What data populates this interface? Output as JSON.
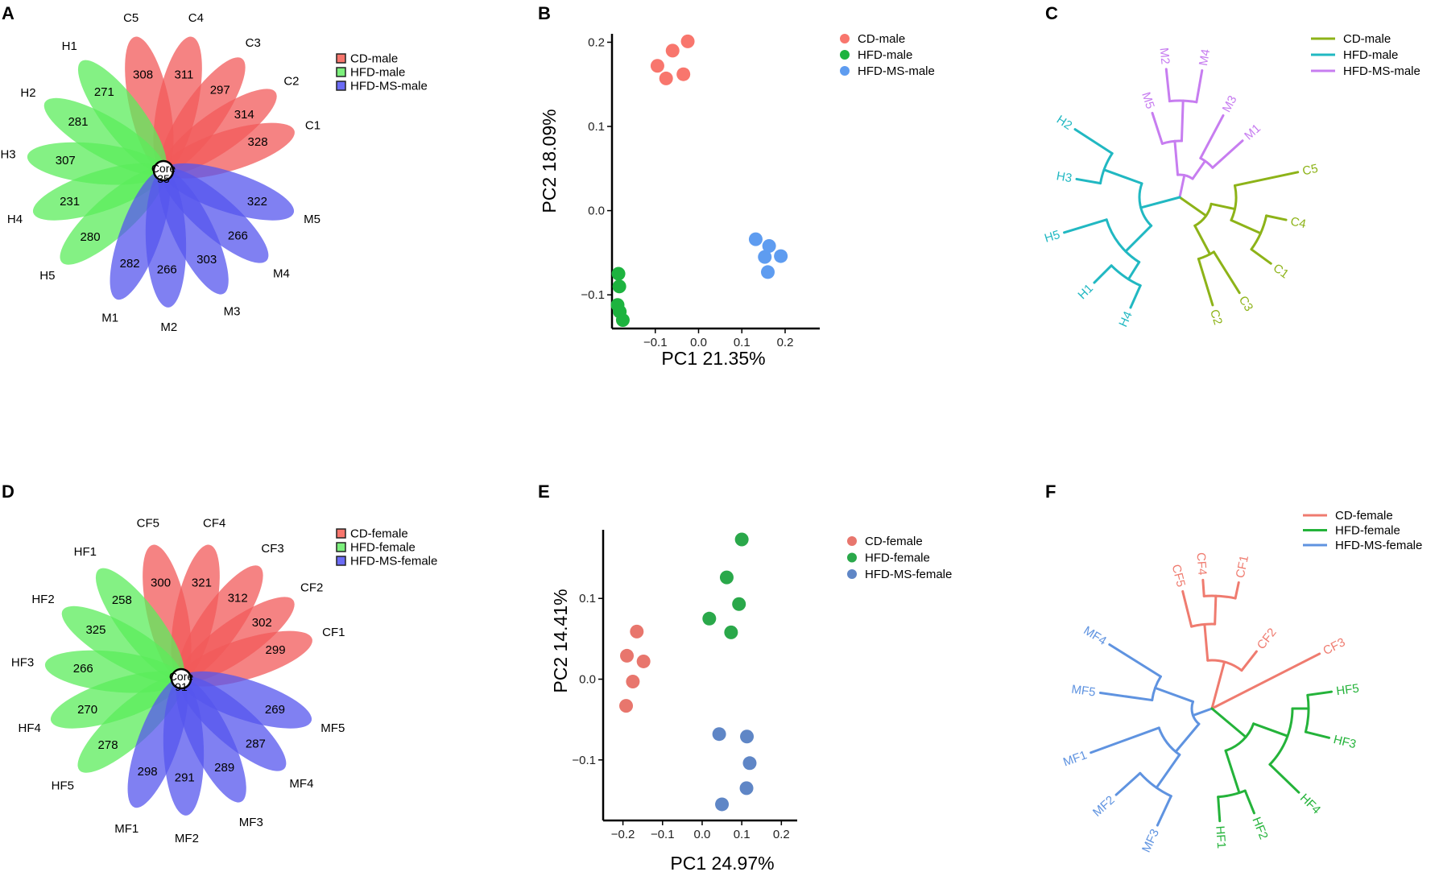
{
  "figure": {
    "panel_letters": [
      "A",
      "B",
      "C",
      "D",
      "E",
      "F"
    ]
  },
  "chart_data": [
    {
      "panel": "A",
      "type": "flower",
      "core_label": "Core",
      "core_value": "35",
      "legend": [
        {
          "label": "CD-male",
          "color": "#f8766d"
        },
        {
          "label": "HFD-male",
          "color": "#7cf07c"
        },
        {
          "label": "HFD-MS-male",
          "color": "#6b6bf5"
        }
      ],
      "petals": [
        {
          "name": "C1",
          "value": "328",
          "group": 0
        },
        {
          "name": "C2",
          "value": "314",
          "group": 0
        },
        {
          "name": "C3",
          "value": "297",
          "group": 0
        },
        {
          "name": "C4",
          "value": "311",
          "group": 0
        },
        {
          "name": "C5",
          "value": "308",
          "group": 0
        },
        {
          "name": "H1",
          "value": "271",
          "group": 1
        },
        {
          "name": "H2",
          "value": "281",
          "group": 1
        },
        {
          "name": "H3",
          "value": "307",
          "group": 1
        },
        {
          "name": "H4",
          "value": "231",
          "group": 1
        },
        {
          "name": "H5",
          "value": "280",
          "group": 1
        },
        {
          "name": "M1",
          "value": "282",
          "group": 2
        },
        {
          "name": "M2",
          "value": "266",
          "group": 2
        },
        {
          "name": "M3",
          "value": "303",
          "group": 2
        },
        {
          "name": "M4",
          "value": "266",
          "group": 2
        },
        {
          "name": "M5",
          "value": "322",
          "group": 2
        }
      ]
    },
    {
      "panel": "B",
      "type": "scatter",
      "xlabel": "PC1 21.35%",
      "ylabel": "PC2 18.09%",
      "xlim": [
        -0.2,
        0.28
      ],
      "ylim": [
        -0.14,
        0.21
      ],
      "xticks": [
        -0.1,
        0.0,
        0.1,
        0.2
      ],
      "xtick_labels": [
        "−0.1",
        "0.0",
        "0.1",
        "0.2"
      ],
      "yticks": [
        -0.1,
        0.0,
        0.1,
        0.2
      ],
      "ytick_labels": [
        "−0.1",
        "0.0",
        "0.1",
        "0.2"
      ],
      "legend": [
        {
          "label": "CD-male",
          "color": "#f8766d"
        },
        {
          "label": "HFD-male",
          "color": "#1db33f"
        },
        {
          "label": "HFD-MS-male",
          "color": "#5e9cf0"
        }
      ],
      "series": [
        {
          "name": "CD-male",
          "color": "#f8766d",
          "points": [
            [
              -0.095,
              0.172
            ],
            [
              -0.06,
              0.19
            ],
            [
              -0.025,
              0.201
            ],
            [
              -0.075,
              0.157
            ],
            [
              -0.035,
              0.162
            ]
          ]
        },
        {
          "name": "HFD-male",
          "color": "#1db33f",
          "points": [
            [
              -0.185,
              -0.075
            ],
            [
              -0.183,
              -0.09
            ],
            [
              -0.187,
              -0.112
            ],
            [
              -0.182,
              -0.12
            ],
            [
              -0.175,
              -0.13
            ]
          ]
        },
        {
          "name": "HFD-MS-male",
          "color": "#5e9cf0",
          "points": [
            [
              0.132,
              -0.034
            ],
            [
              0.163,
              -0.042
            ],
            [
              0.19,
              -0.054
            ],
            [
              0.153,
              -0.055
            ],
            [
              0.16,
              -0.073
            ]
          ]
        }
      ]
    },
    {
      "panel": "C",
      "type": "dendrogram",
      "legend": [
        {
          "label": "CD-male",
          "color": "#8db318"
        },
        {
          "label": "HFD-male",
          "color": "#21b8c2"
        },
        {
          "label": "HFD-MS-male",
          "color": "#c77df0"
        }
      ],
      "leaves": [
        {
          "label": "M1",
          "group": 2
        },
        {
          "label": "M2",
          "group": 2
        },
        {
          "label": "M3",
          "group": 2
        },
        {
          "label": "M4",
          "group": 2
        },
        {
          "label": "M5",
          "group": 2
        },
        {
          "label": "C1",
          "group": 0
        },
        {
          "label": "C2",
          "group": 0
        },
        {
          "label": "C3",
          "group": 0
        },
        {
          "label": "C4",
          "group": 0
        },
        {
          "label": "C5",
          "group": 0
        },
        {
          "label": "H1",
          "group": 1
        },
        {
          "label": "H2",
          "group": 1
        },
        {
          "label": "H3",
          "group": 1
        },
        {
          "label": "H4",
          "group": 1
        },
        {
          "label": "H5",
          "group": 1
        }
      ]
    },
    {
      "panel": "D",
      "type": "flower",
      "core_label": "Core",
      "core_value": "91",
      "legend": [
        {
          "label": "CD-female",
          "color": "#f8766d"
        },
        {
          "label": "HFD-female",
          "color": "#7cf07c"
        },
        {
          "label": "HFD-MS-female",
          "color": "#6b6bf5"
        }
      ],
      "petals": [
        {
          "name": "CF1",
          "value": "299",
          "group": 0
        },
        {
          "name": "CF2",
          "value": "302",
          "group": 0
        },
        {
          "name": "CF3",
          "value": "312",
          "group": 0
        },
        {
          "name": "CF4",
          "value": "321",
          "group": 0
        },
        {
          "name": "CF5",
          "value": "300",
          "group": 0
        },
        {
          "name": "HF1",
          "value": "258",
          "group": 1
        },
        {
          "name": "HF2",
          "value": "325",
          "group": 1
        },
        {
          "name": "HF3",
          "value": "266",
          "group": 1
        },
        {
          "name": "HF4",
          "value": "270",
          "group": 1
        },
        {
          "name": "HF5",
          "value": "278",
          "group": 1
        },
        {
          "name": "MF1",
          "value": "298",
          "group": 2
        },
        {
          "name": "MF2",
          "value": "291",
          "group": 2
        },
        {
          "name": "MF3",
          "value": "289",
          "group": 2
        },
        {
          "name": "MF4",
          "value": "287",
          "group": 2
        },
        {
          "name": "MF5",
          "value": "269",
          "group": 2
        }
      ]
    },
    {
      "panel": "E",
      "type": "scatter",
      "xlabel": "PC1 24.97%",
      "ylabel": "PC2 14.41%",
      "xlim": [
        -0.25,
        0.24
      ],
      "ylim": [
        -0.175,
        0.185
      ],
      "xticks": [
        -0.2,
        -0.1,
        0.0,
        0.1,
        0.2
      ],
      "xtick_labels": [
        "−0.2",
        "−0.1",
        "0.0",
        "0.1",
        "0.2"
      ],
      "yticks": [
        -0.1,
        0.0,
        0.1
      ],
      "ytick_labels": [
        "−0.1",
        "0.0",
        "0.1"
      ],
      "legend": [
        {
          "label": "CD-female",
          "color": "#e8766d"
        },
        {
          "label": "HFD-female",
          "color": "#2aa84a"
        },
        {
          "label": "HFD-MS-female",
          "color": "#5f86c6"
        }
      ],
      "series": [
        {
          "name": "CD-female",
          "color": "#e8766d",
          "points": [
            [
              -0.165,
              0.059
            ],
            [
              -0.19,
              0.029
            ],
            [
              -0.148,
              0.022
            ],
            [
              -0.175,
              -0.003
            ],
            [
              -0.192,
              -0.033
            ]
          ]
        },
        {
          "name": "HFD-female",
          "color": "#2aa84a",
          "points": [
            [
              0.1,
              0.173
            ],
            [
              0.062,
              0.126
            ],
            [
              0.093,
              0.093
            ],
            [
              0.018,
              0.075
            ],
            [
              0.073,
              0.058
            ]
          ]
        },
        {
          "name": "HFD-MS-female",
          "color": "#5f86c6",
          "points": [
            [
              0.043,
              -0.068
            ],
            [
              0.113,
              -0.071
            ],
            [
              0.12,
              -0.104
            ],
            [
              0.112,
              -0.135
            ],
            [
              0.05,
              -0.155
            ]
          ]
        }
      ]
    },
    {
      "panel": "F",
      "type": "dendrogram",
      "legend": [
        {
          "label": "CD-female",
          "color": "#ef7b6f"
        },
        {
          "label": "HFD-female",
          "color": "#24b33a"
        },
        {
          "label": "HFD-MS-female",
          "color": "#5f93e0"
        }
      ],
      "leaves": [
        {
          "label": "CF1",
          "group": 0
        },
        {
          "label": "CF2",
          "group": 0
        },
        {
          "label": "CF3",
          "group": 0
        },
        {
          "label": "CF4",
          "group": 0
        },
        {
          "label": "CF5",
          "group": 0
        },
        {
          "label": "HF1",
          "group": 1
        },
        {
          "label": "HF2",
          "group": 1
        },
        {
          "label": "HF3",
          "group": 1
        },
        {
          "label": "HF4",
          "group": 1
        },
        {
          "label": "HF5",
          "group": 1
        },
        {
          "label": "MF1",
          "group": 2
        },
        {
          "label": "MF2",
          "group": 2
        },
        {
          "label": "MF3",
          "group": 2
        },
        {
          "label": "MF4",
          "group": 2
        },
        {
          "label": "MF5",
          "group": 2
        }
      ]
    }
  ]
}
